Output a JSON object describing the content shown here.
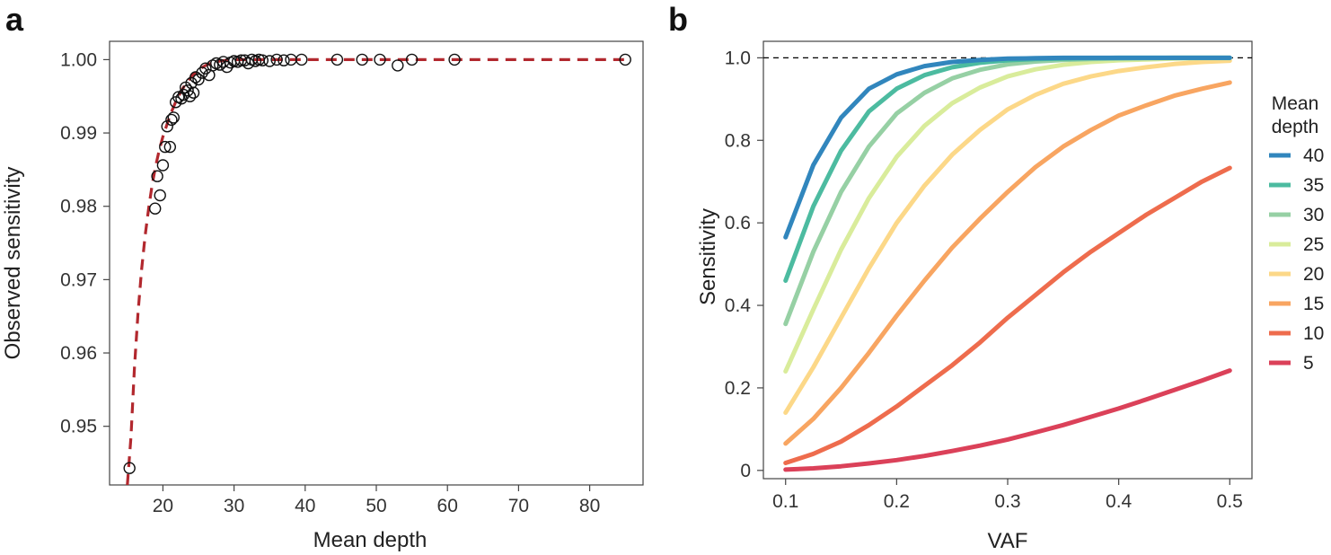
{
  "chart_data": [
    {
      "panel": "a",
      "type": "scatter",
      "xlabel": "Mean depth",
      "ylabel": "Observed sensitivity",
      "xlim": [
        12.5,
        87.5
      ],
      "ylim": [
        0.942,
        1.0025
      ],
      "xticks": [
        20,
        30,
        40,
        50,
        60,
        70,
        80
      ],
      "yticks": [
        0.95,
        0.96,
        0.97,
        0.98,
        0.99,
        1.0
      ],
      "ytick_labels": [
        "0.95",
        "0.96",
        "0.97",
        "0.98",
        "0.99",
        "1.00"
      ],
      "grid": false,
      "points": {
        "x": [
          15.3,
          18.9,
          19.2,
          19.6,
          20.0,
          20.3,
          20.6,
          21.0,
          21.2,
          21.5,
          21.8,
          22.2,
          22.6,
          22.9,
          23.2,
          23.5,
          23.8,
          24.0,
          24.3,
          24.6,
          25.0,
          25.5,
          26.0,
          26.5,
          27.0,
          27.5,
          28.0,
          28.5,
          29.0,
          29.5,
          30.0,
          30.5,
          31.0,
          31.5,
          32.0,
          32.5,
          33.0,
          33.5,
          34.0,
          35.0,
          36.0,
          37.0,
          38.0,
          39.5,
          44.5,
          48.0,
          50.5,
          53.0,
          55.0,
          61.0,
          85.0
        ],
        "y": [
          0.9443,
          0.9797,
          0.9841,
          0.9815,
          0.9856,
          0.9881,
          0.9909,
          0.9881,
          0.9918,
          0.9921,
          0.9942,
          0.9949,
          0.9947,
          0.9952,
          0.9962,
          0.9958,
          0.995,
          0.9968,
          0.9955,
          0.9976,
          0.9973,
          0.9982,
          0.9988,
          0.9979,
          0.9992,
          0.9995,
          0.9993,
          0.9997,
          0.999,
          0.9996,
          0.9998,
          0.9997,
          0.9999,
          0.9999,
          0.9995,
          1.0,
          0.9998,
          1.0,
          0.9999,
          0.9998,
          1.0,
          0.9999,
          1.0,
          1.0,
          1.0,
          1.0,
          1.0,
          0.9992,
          1.0,
          1.0,
          1.0
        ]
      },
      "fit_line": {
        "style": "dashed",
        "color": "#b2282e",
        "x": [
          15.0,
          15.5,
          16.0,
          16.5,
          17.0,
          17.5,
          18.0,
          18.5,
          19.0,
          19.5,
          20.0,
          21.0,
          22.0,
          23.0,
          24.0,
          25.0,
          26.0,
          27.0,
          28.0,
          29.0,
          30.0,
          35.0,
          40.0,
          50.0,
          60.0,
          70.0,
          85.0
        ],
        "y": [
          0.942,
          0.9485,
          0.958,
          0.9655,
          0.9713,
          0.976,
          0.9798,
          0.983,
          0.9856,
          0.9877,
          0.9895,
          0.9924,
          0.9947,
          0.9964,
          0.9977,
          0.9986,
          0.9992,
          0.9996,
          0.9998,
          0.99993,
          1.0,
          1.0,
          1.0,
          1.0,
          1.0,
          1.0,
          1.0
        ]
      }
    },
    {
      "panel": "b",
      "type": "line",
      "xlabel": "VAF",
      "ylabel": "Sensitivity",
      "xlim": [
        0.08,
        0.52
      ],
      "ylim": [
        -0.02,
        1.04
      ],
      "xticks": [
        0.1,
        0.2,
        0.3,
        0.4,
        0.5
      ],
      "yticks": [
        0,
        0.2,
        0.4,
        0.6,
        0.8,
        1.0
      ],
      "ytick_labels": [
        "0",
        "0.2",
        "0.4",
        "0.6",
        "0.8",
        "1.0"
      ],
      "reference_line": {
        "y": 1.0,
        "style": "dashed",
        "color": "#000000"
      },
      "legend": {
        "title_lines": [
          "Mean",
          "depth"
        ],
        "placement": "right"
      },
      "x": [
        0.1,
        0.125,
        0.15,
        0.175,
        0.2,
        0.225,
        0.25,
        0.275,
        0.3,
        0.325,
        0.35,
        0.375,
        0.4,
        0.425,
        0.45,
        0.475,
        0.5
      ],
      "series": [
        {
          "name": "40",
          "color": "#3186bd",
          "values": [
            0.565,
            0.74,
            0.855,
            0.925,
            0.96,
            0.98,
            0.99,
            0.995,
            0.998,
            0.999,
            1.0,
            1.0,
            1.0,
            1.0,
            1.0,
            1.0,
            1.0
          ]
        },
        {
          "name": "35",
          "color": "#4cbba0",
          "values": [
            0.46,
            0.64,
            0.775,
            0.87,
            0.925,
            0.958,
            0.977,
            0.988,
            0.994,
            0.997,
            0.998,
            0.999,
            1.0,
            1.0,
            1.0,
            1.0,
            1.0
          ]
        },
        {
          "name": "30",
          "color": "#96d0a4",
          "values": [
            0.355,
            0.53,
            0.675,
            0.785,
            0.865,
            0.915,
            0.95,
            0.971,
            0.984,
            0.991,
            0.995,
            0.997,
            0.998,
            0.999,
            1.0,
            1.0,
            1.0
          ]
        },
        {
          "name": "25",
          "color": "#d9ec9b",
          "values": [
            0.24,
            0.39,
            0.535,
            0.66,
            0.76,
            0.835,
            0.89,
            0.928,
            0.955,
            0.972,
            0.983,
            0.99,
            0.994,
            0.996,
            0.998,
            0.999,
            0.999
          ]
        },
        {
          "name": "20",
          "color": "#fcd888",
          "values": [
            0.14,
            0.25,
            0.37,
            0.49,
            0.6,
            0.69,
            0.765,
            0.825,
            0.875,
            0.91,
            0.937,
            0.955,
            0.968,
            0.977,
            0.985,
            0.99,
            0.993
          ]
        },
        {
          "name": "15",
          "color": "#f8a561",
          "values": [
            0.065,
            0.125,
            0.2,
            0.285,
            0.375,
            0.46,
            0.54,
            0.61,
            0.675,
            0.735,
            0.785,
            0.825,
            0.86,
            0.885,
            0.908,
            0.925,
            0.94
          ]
        },
        {
          "name": "10",
          "color": "#ee6c4d",
          "values": [
            0.018,
            0.04,
            0.07,
            0.11,
            0.155,
            0.205,
            0.255,
            0.31,
            0.37,
            0.425,
            0.48,
            0.53,
            0.575,
            0.62,
            0.66,
            0.7,
            0.733
          ]
        },
        {
          "name": "5",
          "color": "#db4159",
          "values": [
            0.002,
            0.005,
            0.01,
            0.017,
            0.025,
            0.035,
            0.047,
            0.06,
            0.075,
            0.092,
            0.11,
            0.13,
            0.15,
            0.172,
            0.195,
            0.218,
            0.242
          ]
        }
      ]
    }
  ]
}
